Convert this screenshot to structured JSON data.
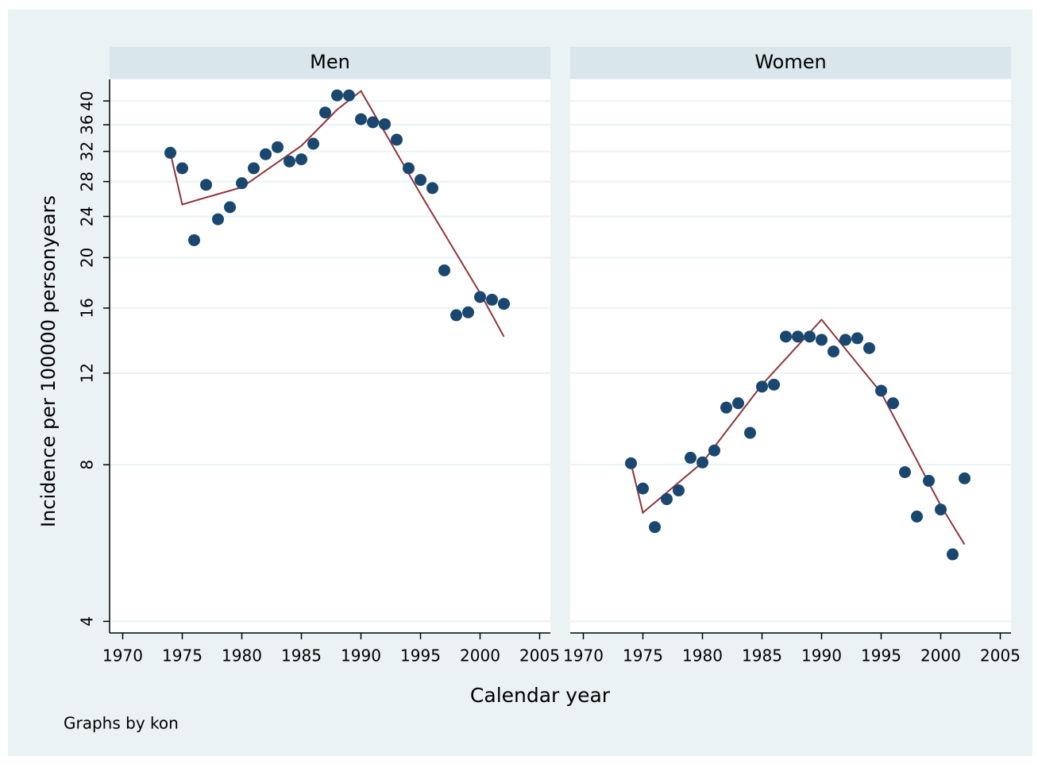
{
  "chart_data": {
    "type": "scatter",
    "log_y": true,
    "grid": true,
    "ylabel": "Incidence per 100000 personyears",
    "xlabel": "Calendar year",
    "note": "Graphs by kon",
    "marker_color": "#1a476f",
    "line_color": "#90353b",
    "ylim": [
      3.8,
      44
    ],
    "yticks": [
      4,
      8,
      12,
      16,
      20,
      24,
      28,
      32,
      36,
      40
    ],
    "xlim": [
      1968.9,
      2005.9
    ],
    "xticks": [
      1970,
      1975,
      1980,
      1985,
      1990,
      1995,
      2000,
      2005
    ],
    "panels": [
      {
        "title": "Men",
        "x": [
          1974,
          1975,
          1976,
          1977,
          1978,
          1979,
          1980,
          1981,
          1982,
          1983,
          1984,
          1985,
          1986,
          1987,
          1988,
          1989,
          1990,
          1991,
          1992,
          1993,
          1994,
          1995,
          1996,
          1997,
          1998,
          1999,
          2000,
          2001,
          2002
        ],
        "values": [
          31.8,
          29.7,
          21.6,
          27.6,
          23.7,
          25.0,
          27.8,
          29.7,
          31.6,
          32.6,
          30.6,
          30.9,
          33.1,
          38.0,
          41.0,
          41.0,
          36.9,
          36.4,
          36.1,
          33.7,
          29.7,
          28.2,
          27.2,
          18.9,
          15.5,
          15.7,
          16.8,
          16.6,
          16.3
        ],
        "fit_x": [
          1974,
          1975,
          1977,
          1980,
          1985,
          1988,
          1990,
          1995,
          2000,
          2002
        ],
        "fit_values": [
          31.8,
          25.3,
          26.1,
          27.3,
          32.8,
          38.5,
          41.8,
          26.5,
          17.1,
          14.1
        ]
      },
      {
        "title": "Women",
        "x": [
          1974,
          1975,
          1976,
          1977,
          1978,
          1979,
          1980,
          1981,
          1982,
          1983,
          1984,
          1985,
          1986,
          1987,
          1988,
          1989,
          1990,
          1991,
          1992,
          1993,
          1994,
          1995,
          1996,
          1997,
          1998,
          1999,
          2000,
          2001,
          2002
        ],
        "values": [
          8.05,
          7.2,
          6.07,
          6.87,
          7.14,
          8.25,
          8.08,
          8.52,
          10.3,
          10.5,
          9.21,
          11.3,
          11.4,
          14.1,
          14.1,
          14.1,
          13.9,
          13.2,
          13.9,
          14.0,
          13.4,
          11.1,
          10.5,
          7.74,
          6.36,
          7.45,
          6.56,
          5.38,
          7.53
        ],
        "fit_x": [
          1974,
          1975,
          1980,
          1985,
          1990,
          1995,
          2000,
          2002
        ],
        "fit_values": [
          8.05,
          6.47,
          8.08,
          11.4,
          15.2,
          11.0,
          6.68,
          5.62
        ]
      }
    ]
  }
}
